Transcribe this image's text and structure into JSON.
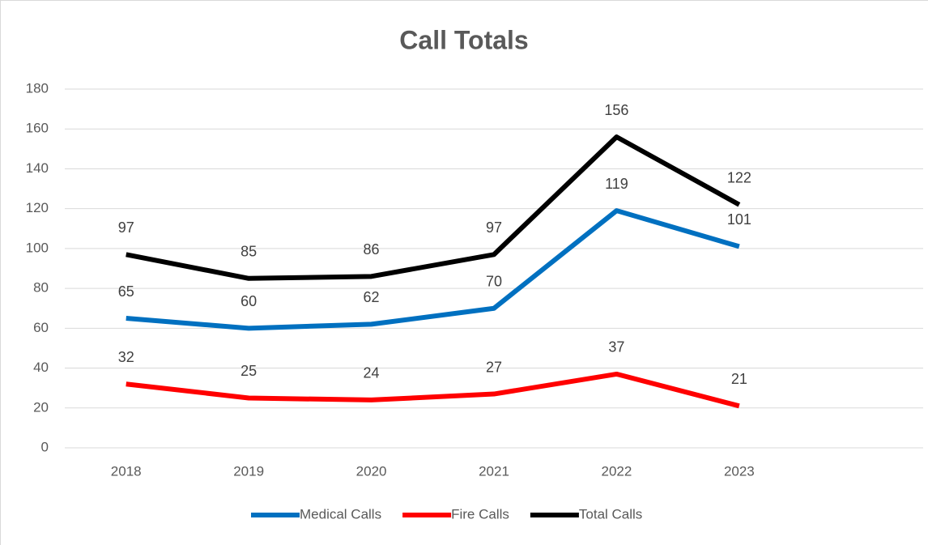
{
  "chart_data": {
    "type": "line",
    "title": "Call Totals",
    "categories": [
      "2018",
      "2019",
      "2020",
      "2021",
      "2022",
      "2023",
      null
    ],
    "series": [
      {
        "name": "Medical Calls",
        "color": "#0070c0",
        "values": [
          65,
          60,
          62,
          70,
          119,
          101,
          null
        ]
      },
      {
        "name": "Fire Calls",
        "color": "#ff0000",
        "values": [
          32,
          25,
          24,
          27,
          37,
          21,
          null
        ]
      },
      {
        "name": "Total Calls",
        "color": "#000000",
        "values": [
          97,
          85,
          86,
          97,
          156,
          122,
          null
        ]
      }
    ],
    "ylim": [
      0,
      180
    ],
    "yticks": [
      0,
      20,
      40,
      60,
      80,
      100,
      120,
      140,
      160,
      180
    ],
    "grid": true,
    "legend": "bottom"
  }
}
